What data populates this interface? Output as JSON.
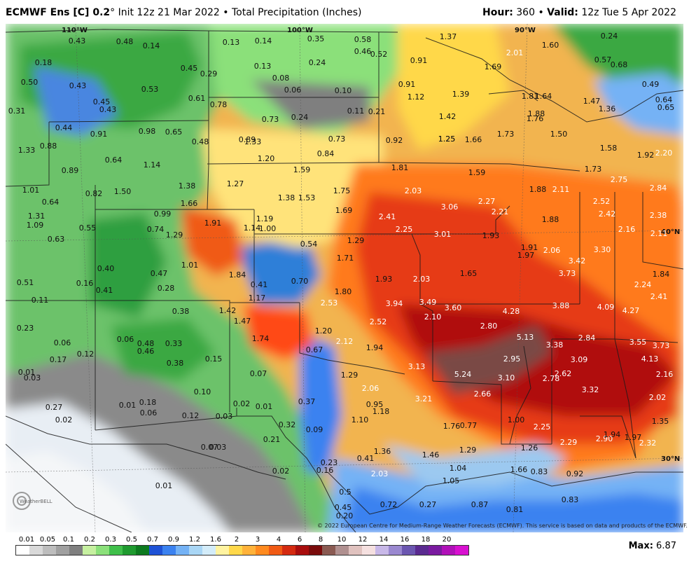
{
  "header": {
    "model": "ECMWF Ens [C] 0.2",
    "degree": "°",
    "init": " Init 12z 21 Mar 2022",
    "bullet": " • ",
    "product": "Total Precipitation (Inches)",
    "hour_label": "Hour:",
    "hour_value": " 360",
    "valid_label": "Valid:",
    "valid_value": " 12z Tue 5 Apr 2022"
  },
  "graticule": {
    "lon_110": "110°W",
    "lon_100": "100°W",
    "lon_90": "90°W",
    "lat_40": "40°N",
    "lat_30": "30°N"
  },
  "logo_text": "WeatherBELL",
  "copyright": "© 2022 European Centre for Medium-Range Weather Forecasts (ECMWF). This service is based on data and products of the ECMWF.",
  "max": {
    "label": "Max:",
    "value": " 6.87"
  },
  "legend": {
    "labels": [
      "0.01",
      "0.05",
      "0.1",
      "0.2",
      "0.3",
      "0.5",
      "0.7",
      "0.9",
      "1.2",
      "1.6",
      "2",
      "3",
      "4",
      "6",
      "8",
      "10",
      "12",
      "14",
      "16",
      "18",
      "20"
    ],
    "colors": [
      "#ffffff",
      "#d9d9d9",
      "#bdbdbd",
      "#a0a0a0",
      "#7f7f7f",
      "#c6f0a0",
      "#8be07a",
      "#3fbf4a",
      "#1f9a2f",
      "#0d7a1f",
      "#1e52d6",
      "#3b82f0",
      "#74b2f5",
      "#a9d6f5",
      "#d3ecf9",
      "#fff3a0",
      "#ffd84a",
      "#ffb23a",
      "#ff8a1f",
      "#f05a14",
      "#d42a10",
      "#a80d0d",
      "#7a0b0b",
      "#8a5a52",
      "#b09090",
      "#e0c2bf",
      "#f5e0e0",
      "#c8b8e8",
      "#9a88d0",
      "#6b56b0",
      "#5a2a90",
      "#7a1aa0",
      "#b010b8",
      "#d810d0"
    ]
  },
  "values": [
    "0.43",
    "0.48",
    "0.14",
    "0.13",
    "0.14",
    "0.35",
    "0.58",
    "0.46",
    "0.52",
    "1.37",
    "2.01",
    "1.60",
    "0.24",
    "0.18",
    "0.50",
    "0.43",
    "0.45",
    "0.53",
    "0.45",
    "0.29",
    "0.13",
    "0.24",
    "0.08",
    "0.91",
    "1.69",
    "0.57",
    "0.68",
    "0.31",
    "0.43",
    "0.61",
    "0.78",
    "0.06",
    "0.10",
    "0.11",
    "0.21",
    "0.91",
    "1.12",
    "1.39",
    "1.81",
    "1.64",
    "1.47",
    "1.36",
    "0.49",
    "0.64",
    "0.65",
    "0.44",
    "0.91",
    "0.98",
    "0.65",
    "0.48",
    "0.73",
    "0.24",
    "1.33",
    "1.42",
    "1.76",
    "1.88",
    "1.25",
    "1.33",
    "0.88",
    "0.64",
    "1.14",
    "0.89",
    "0.73",
    "0.92",
    "1.25",
    "1.66",
    "1.73",
    "1.50",
    "1.58",
    "1.92",
    "2.20",
    "0.89",
    "1.20",
    "0.84",
    "1.81",
    "1.59",
    "1.73",
    "1.01",
    "0.82",
    "1.50",
    "1.38",
    "1.27",
    "1.59",
    "1.38",
    "1.53",
    "1.75",
    "2.03",
    "1.88",
    "2.11",
    "2.75",
    "2.84",
    "0.64",
    "1.66",
    "1.69",
    "3.06",
    "2.27",
    "2.52",
    "1.31",
    "1.09",
    "0.99",
    "1.91",
    "1.19",
    "2.41",
    "2.21",
    "1.88",
    "2.42",
    "2.38",
    "0.55",
    "0.74",
    "1.29",
    "1.14",
    "1.00",
    "2.25",
    "3.01",
    "1.93",
    "2.16",
    "2.11",
    "0.63",
    "0.54",
    "1.29",
    "1.91",
    "2.06",
    "3.30",
    "1.01",
    "1.71",
    "1.97",
    "3.42",
    "0.40",
    "0.47",
    "1.84",
    "1.93",
    "2.03",
    "1.65",
    "3.73",
    "1.84",
    "0.51",
    "0.16",
    "0.41",
    "0.28",
    "0.41",
    "0.70",
    "1.80",
    "2.24",
    "0.11",
    "1.17",
    "2.53",
    "3.94",
    "3.49",
    "3.60",
    "4.28",
    "3.88",
    "4.09",
    "4.27",
    "2.41",
    "0.38",
    "1.42",
    "1.47",
    "2.52",
    "2.10",
    "2.80",
    "0.23",
    "1.20",
    "5.13",
    "3.38",
    "2.84",
    "3.55",
    "3.73",
    "0.06",
    "0.06",
    "0.48",
    "0.33",
    "1.74",
    "2.12",
    "1.94",
    "4.13",
    "0.17",
    "0.12",
    "0.46",
    "0.38",
    "0.15",
    "0.67",
    "2.95",
    "3.09",
    "0.01",
    "0.03",
    "0.07",
    "1.29",
    "3.13",
    "5.24",
    "3.10",
    "2.78",
    "2.62",
    "2.16",
    "2.06",
    "0.10",
    "2.66",
    "3.32",
    "0.27",
    "0.01",
    "0.18",
    "0.02",
    "0.01",
    "0.37",
    "0.95",
    "3.21",
    "2.02",
    "0.02",
    "0.06",
    "0.12",
    "0.03",
    "1.18",
    "1.10",
    "1.76",
    "0.77",
    "1.00",
    "2.25",
    "1.35",
    "0.32",
    "0.09",
    "0.21",
    "0.07",
    "0.03",
    "1.36",
    "1.29",
    "1.26",
    "2.29",
    "2.90",
    "1.94",
    "1.97",
    "2.32",
    "0.41",
    "1.46",
    "0.23",
    "0.16",
    "0.02",
    "2.03",
    "1.04",
    "1.66",
    "0.83",
    "0.92",
    "0.01",
    "1.05",
    "0.45",
    "0.72",
    "0.27",
    "0.87",
    "0.81",
    "0.83",
    "0.20",
    "0.5"
  ]
}
